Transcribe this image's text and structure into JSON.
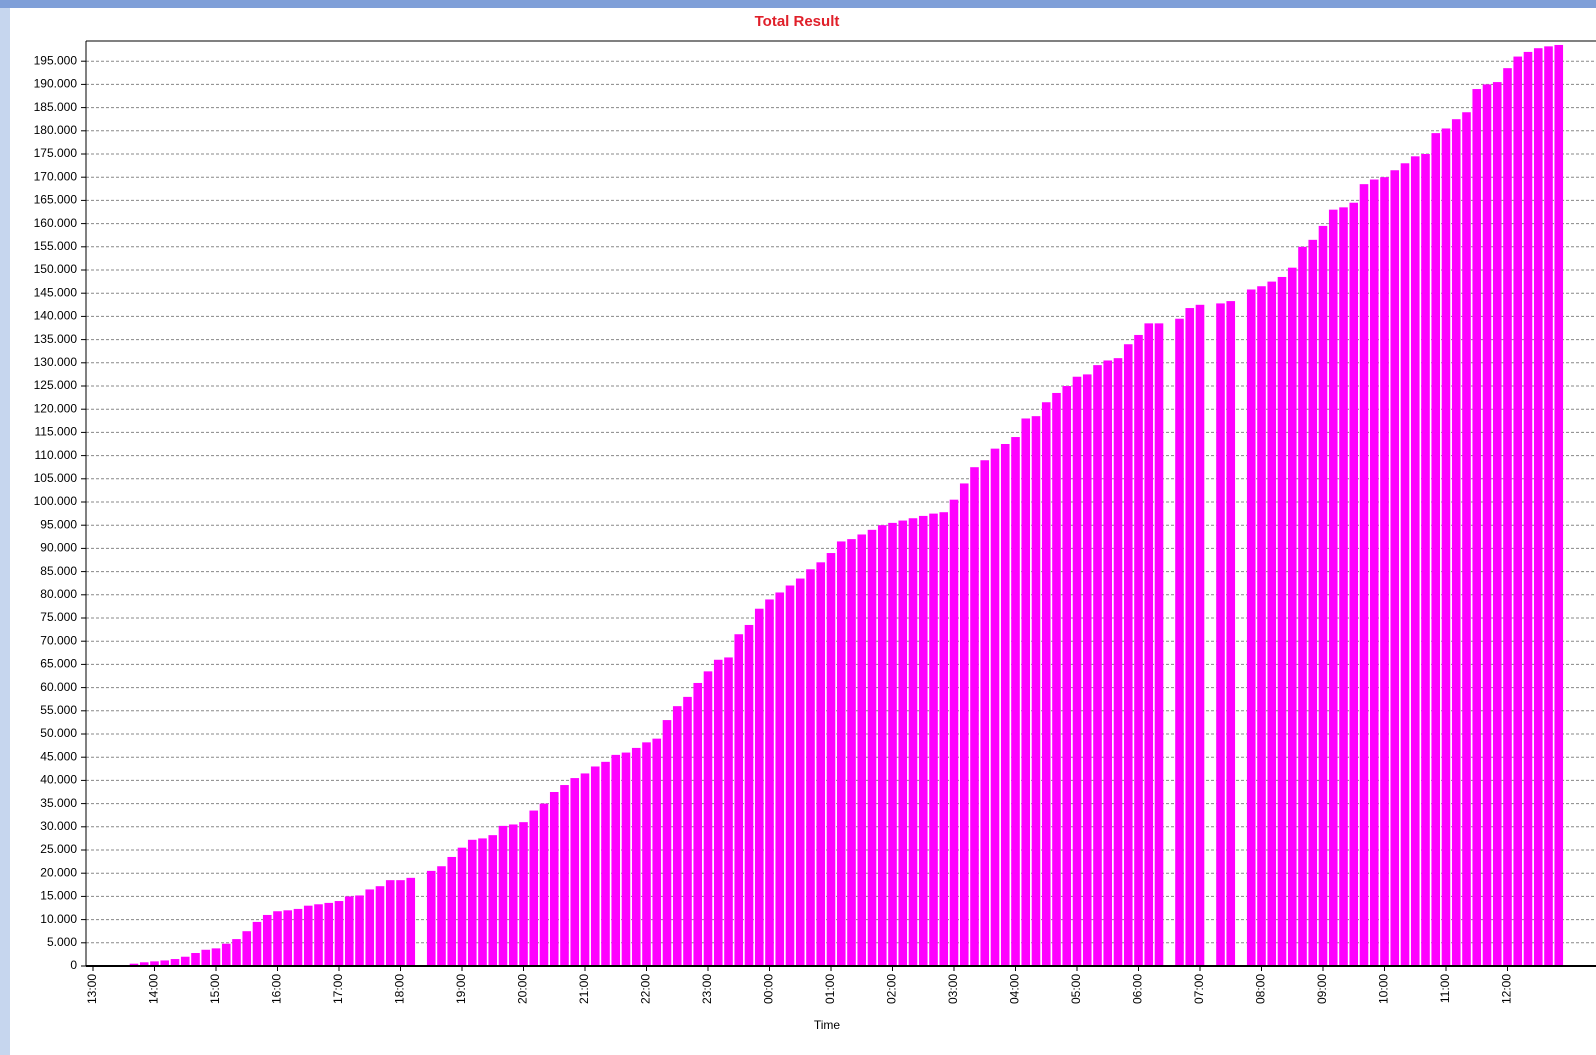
{
  "chart_data": {
    "type": "bar",
    "title": "Total Result",
    "x_label": "Time",
    "color": "#ff00ff",
    "grid": true,
    "categories": [
      "13:00",
      null,
      null,
      null,
      null,
      null,
      "14:00",
      null,
      null,
      null,
      null,
      null,
      "15:00",
      null,
      null,
      null,
      null,
      null,
      "16:00",
      null,
      null,
      null,
      null,
      null,
      "17:00",
      null,
      null,
      null,
      null,
      null,
      "18:00",
      null,
      null,
      null,
      null,
      null,
      "19:00",
      null,
      null,
      null,
      null,
      null,
      "20:00",
      null,
      null,
      null,
      null,
      null,
      "21:00",
      null,
      null,
      null,
      null,
      null,
      "22:00",
      null,
      null,
      null,
      null,
      null,
      "23:00",
      null,
      null,
      null,
      null,
      null,
      "00:00",
      null,
      null,
      null,
      null,
      null,
      "01:00",
      null,
      null,
      null,
      null,
      null,
      "02:00",
      null,
      null,
      null,
      null,
      null,
      "03:00",
      null,
      null,
      null,
      null,
      null,
      "04:00",
      null,
      null,
      null,
      null,
      null,
      "05:00",
      null,
      null,
      null,
      null,
      null,
      "06:00",
      null,
      null,
      null,
      null,
      null,
      "07:00",
      null,
      null,
      null,
      null,
      null,
      "08:00",
      null,
      null,
      null,
      null,
      null,
      "09:00",
      null,
      null,
      null,
      null,
      null,
      "10:00",
      null,
      null,
      null,
      null,
      null,
      "11:00",
      null,
      null,
      null,
      null,
      null,
      "12:00",
      null,
      null,
      null,
      null,
      null
    ],
    "values": [
      0,
      0,
      0,
      200,
      500,
      800,
      1000,
      1200,
      1500,
      2000,
      2800,
      3500,
      3800,
      4800,
      5800,
      7500,
      9500,
      11000,
      11800,
      12000,
      12300,
      13000,
      13300,
      13600,
      14000,
      15000,
      15200,
      16500,
      17200,
      18500,
      18500,
      19000,
      0,
      20500,
      21500,
      23500,
      25500,
      27200,
      27500,
      28200,
      30200,
      30500,
      31000,
      33500,
      35000,
      37500,
      39000,
      40500,
      41500,
      43000,
      44000,
      45500,
      46000,
      47000,
      48200,
      49000,
      53000,
      56000,
      58000,
      61000,
      63500,
      66000,
      66500,
      71500,
      73500,
      77000,
      79000,
      80500,
      82000,
      83500,
      85500,
      87000,
      89000,
      91500,
      92000,
      93000,
      94000,
      95000,
      95500,
      96000,
      96500,
      97000,
      97500,
      97800,
      100500,
      104000,
      107500,
      109000,
      111500,
      112500,
      114000,
      118000,
      118500,
      121500,
      123500,
      125000,
      127000,
      127500,
      129500,
      130500,
      131000,
      134000,
      136000,
      138500,
      138500,
      0,
      139500,
      141800,
      142500,
      0,
      142800,
      143300,
      0,
      145800,
      146500,
      147500,
      148500,
      150500,
      155000,
      156500,
      159500,
      163000,
      163500,
      164500,
      168500,
      169500,
      170000,
      171500,
      173000,
      174500,
      175000,
      179500,
      180500,
      182500,
      184000,
      189000,
      190000,
      190500,
      193500,
      196000,
      197000,
      197800,
      198200,
      198500
    ],
    "ylim": [
      0,
      200000
    ],
    "yticks": [
      0,
      {
        "value": 5000,
        "label": "5.000"
      },
      {
        "value": 10000,
        "label": "10.000"
      },
      {
        "value": 15000,
        "label": "15.000"
      },
      {
        "value": 20000,
        "label": "20.000"
      },
      {
        "value": 25000,
        "label": "25.000"
      },
      {
        "value": 30000,
        "label": "30.000"
      },
      {
        "value": 35000,
        "label": "35.000"
      },
      {
        "value": 40000,
        "label": "40.000"
      },
      {
        "value": 45000,
        "label": "45.000"
      },
      {
        "value": 50000,
        "label": "50.000"
      },
      {
        "value": 55000,
        "label": "55.000"
      },
      {
        "value": 60000,
        "label": "60.000"
      },
      {
        "value": 65000,
        "label": "65.000"
      },
      {
        "value": 70000,
        "label": "70.000"
      },
      {
        "value": 75000,
        "label": "75.000"
      },
      {
        "value": 80000,
        "label": "80.000"
      },
      {
        "value": 85000,
        "label": "85.000"
      },
      {
        "value": 90000,
        "label": "90.000"
      },
      {
        "value": 95000,
        "label": "95.000"
      },
      {
        "value": 100000,
        "label": "100.000"
      },
      {
        "value": 105000,
        "label": "105.000"
      },
      {
        "value": 110000,
        "label": "110.000"
      },
      {
        "value": 115000,
        "label": "115.000"
      },
      {
        "value": 120000,
        "label": "120.000"
      },
      {
        "value": 125000,
        "label": "125.000"
      },
      {
        "value": 130000,
        "label": "130.000"
      },
      {
        "value": 135000,
        "label": "135.000"
      },
      {
        "value": 140000,
        "label": "140.000"
      },
      {
        "value": 145000,
        "label": "145.000"
      },
      {
        "value": 150000,
        "label": "150.000"
      },
      {
        "value": 155000,
        "label": "155.000"
      },
      {
        "value": 160000,
        "label": "160.000"
      },
      {
        "value": 165000,
        "label": "165.000"
      },
      {
        "value": 170000,
        "label": "170.000"
      },
      {
        "value": 175000,
        "label": "175.000"
      },
      {
        "value": 180000,
        "label": "180.000"
      },
      {
        "value": 185000,
        "label": "185.000"
      },
      {
        "value": 190000,
        "label": "190.000"
      },
      {
        "value": 195000,
        "label": "195.000"
      }
    ]
  }
}
